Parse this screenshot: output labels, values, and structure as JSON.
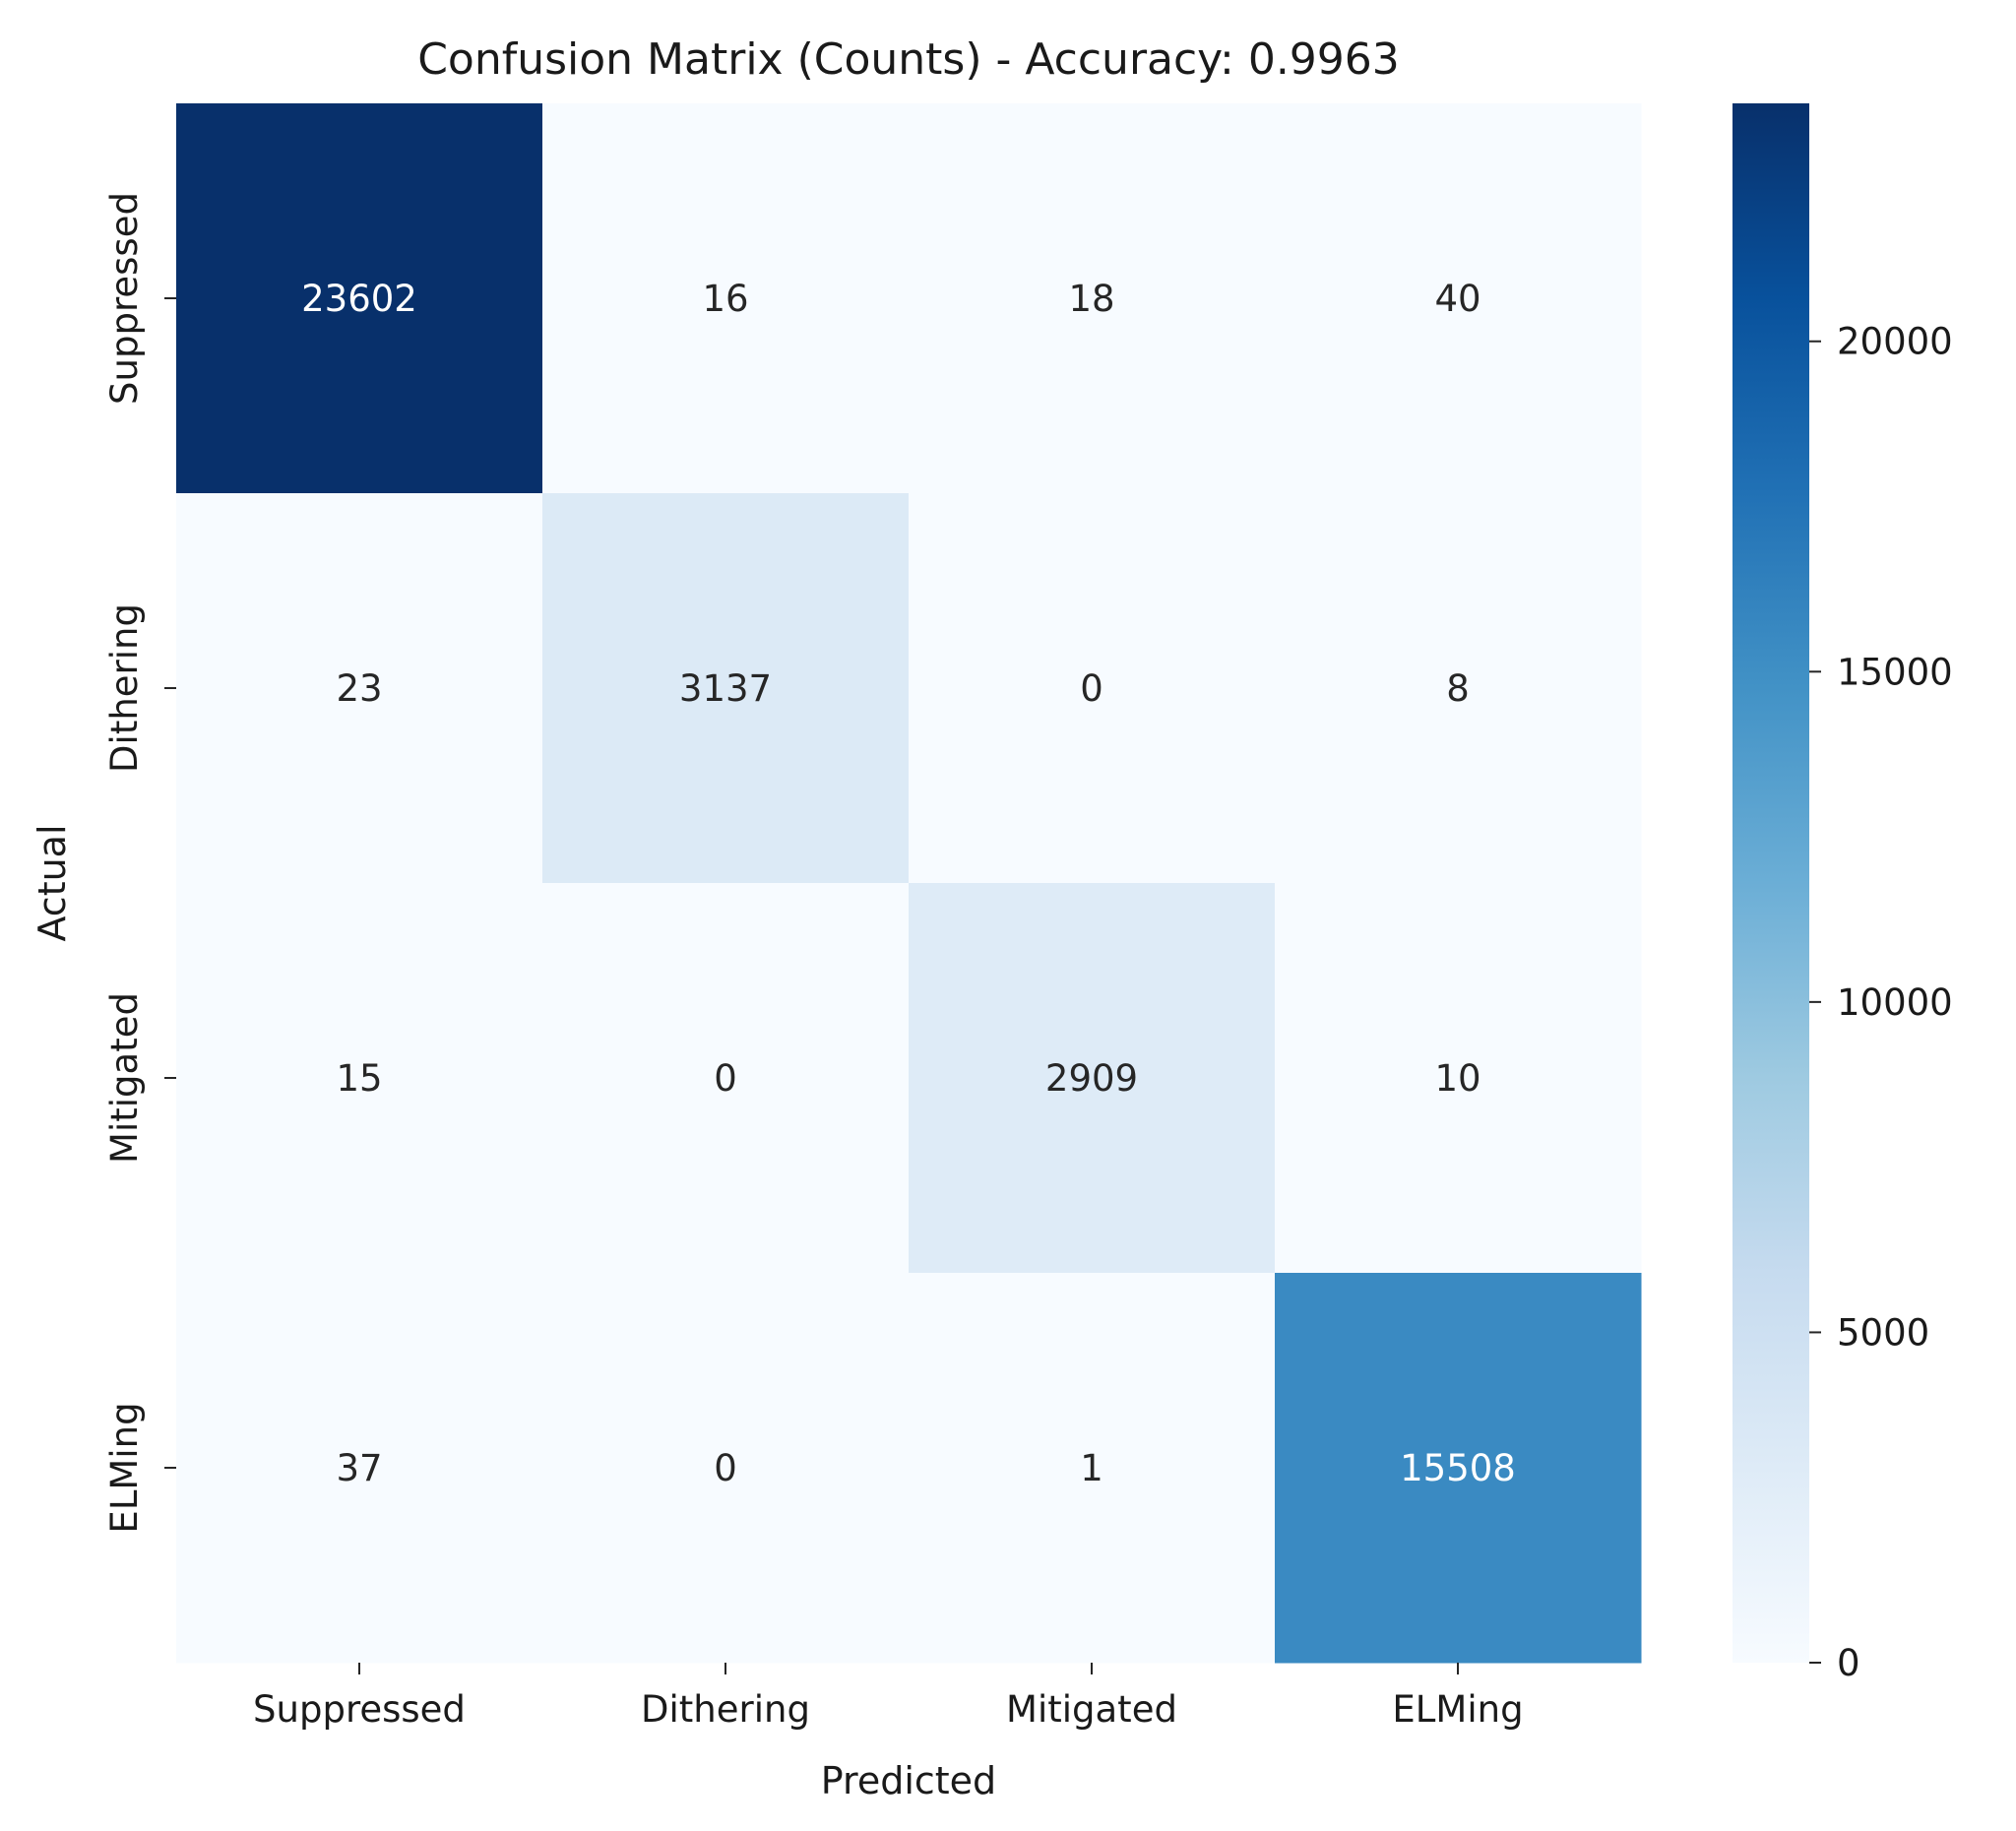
{
  "chart_data": {
    "type": "heatmap",
    "title": "Confusion Matrix (Counts) - Accuracy: 0.9963",
    "xlabel": "Predicted",
    "ylabel": "Actual",
    "x_categories": [
      "Suppressed",
      "Dithering",
      "Mitigated",
      "ELMing"
    ],
    "y_categories": [
      "Suppressed",
      "Dithering",
      "Mitigated",
      "ELMing"
    ],
    "values": [
      [
        23602,
        16,
        18,
        40
      ],
      [
        23,
        3137,
        0,
        8
      ],
      [
        15,
        0,
        2909,
        10
      ],
      [
        37,
        0,
        1,
        15508
      ]
    ],
    "colormap": "Blues",
    "colorbar": {
      "range": [
        0,
        23602
      ],
      "ticks": [
        0,
        5000,
        10000,
        15000,
        20000
      ],
      "tick_labels": [
        "0",
        "5000",
        "10000",
        "15000",
        "20000"
      ]
    },
    "grid": false,
    "legend": "colorbar-right"
  }
}
